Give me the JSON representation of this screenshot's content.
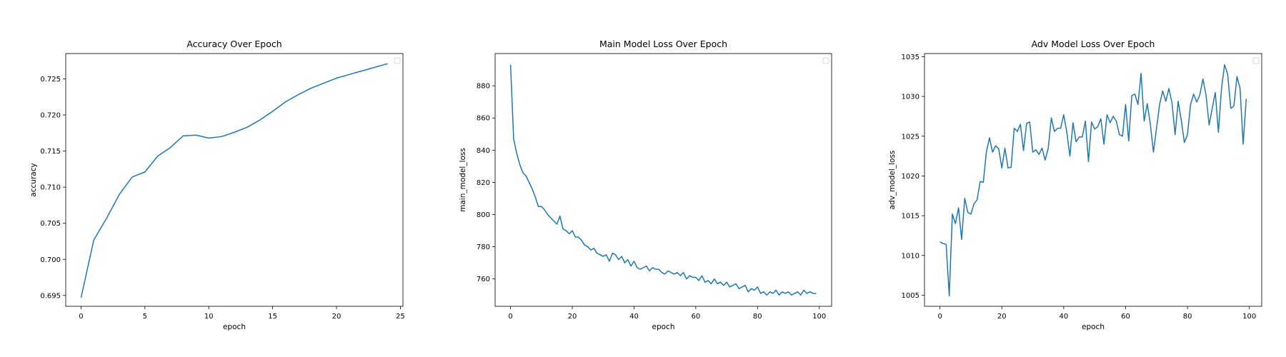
{
  "chart_data": [
    {
      "type": "line",
      "title": "Accuracy Over Epoch",
      "xlabel": "epoch",
      "ylabel": "accuracy",
      "xlim": [
        -1.2,
        25.2
      ],
      "ylim": [
        0.6935,
        0.7285
      ],
      "xticks": [
        0,
        5,
        10,
        15,
        20,
        25
      ],
      "yticks": [
        0.695,
        0.7,
        0.705,
        0.71,
        0.715,
        0.72,
        0.725
      ],
      "ytick_labels": [
        "0.695",
        "0.700",
        "0.705",
        "0.710",
        "0.715",
        "0.720",
        "0.725"
      ],
      "legend": "top-right (empty)",
      "grid": false,
      "color": "#1f77b4",
      "series": [
        {
          "x": [
            0,
            1,
            2,
            3,
            4,
            5,
            6,
            7,
            8,
            9,
            10,
            11,
            12,
            13,
            14,
            15,
            16,
            17,
            18,
            19,
            20,
            21,
            22,
            23,
            24
          ],
          "values": [
            0.6947,
            0.7027,
            0.7057,
            0.709,
            0.7114,
            0.7121,
            0.7143,
            0.7155,
            0.7171,
            0.7172,
            0.7168,
            0.717,
            0.7176,
            0.7183,
            0.7193,
            0.7205,
            0.7218,
            0.7228,
            0.7237,
            0.7244,
            0.7251,
            0.7256,
            0.7261,
            0.7266,
            0.7271
          ]
        }
      ]
    },
    {
      "type": "line",
      "title": "Main Model Loss Over Epoch",
      "xlabel": "epoch",
      "ylabel": "main_model_loss",
      "xlim": [
        -5,
        104
      ],
      "ylim": [
        743,
        900
      ],
      "xticks": [
        0,
        20,
        40,
        60,
        80,
        100
      ],
      "yticks": [
        760,
        780,
        800,
        820,
        840,
        860,
        880
      ],
      "ytick_labels": [
        "760",
        "780",
        "800",
        "820",
        "840",
        "860",
        "880"
      ],
      "legend": "top-right (empty)",
      "grid": false,
      "color": "#1f77b4",
      "series": [
        {
          "x": [
            0,
            1,
            2,
            3,
            4,
            5,
            6,
            7,
            8,
            9,
            10,
            11,
            12,
            13,
            14,
            15,
            16,
            17,
            18,
            19,
            20,
            21,
            22,
            23,
            24,
            25,
            26,
            27,
            28,
            29,
            30,
            31,
            32,
            33,
            34,
            35,
            36,
            37,
            38,
            39,
            40,
            41,
            42,
            43,
            44,
            45,
            46,
            47,
            48,
            49,
            50,
            51,
            52,
            53,
            54,
            55,
            56,
            57,
            58,
            59,
            60,
            61,
            62,
            63,
            64,
            65,
            66,
            67,
            68,
            69,
            70,
            71,
            72,
            73,
            74,
            75,
            76,
            77,
            78,
            79,
            80,
            81,
            82,
            83,
            84,
            85,
            86,
            87,
            88,
            89,
            90,
            91,
            92,
            93,
            94,
            95,
            96,
            97,
            98,
            99
          ],
          "values": [
            893,
            847,
            838,
            831,
            826,
            824,
            820,
            816,
            811,
            805,
            805,
            803,
            800,
            798,
            796,
            794,
            799,
            791,
            790,
            788,
            790,
            786,
            786,
            784,
            781,
            780,
            778,
            779,
            776,
            775,
            774,
            775,
            771,
            776,
            775,
            772,
            774,
            770,
            772,
            768,
            771,
            767,
            766,
            767,
            768,
            765,
            767,
            766,
            766,
            764,
            763,
            765,
            764,
            763,
            764,
            762,
            764,
            760,
            762,
            761,
            761,
            759,
            762,
            758,
            759,
            757,
            760,
            757,
            758,
            756,
            758,
            755,
            756,
            757,
            754,
            755,
            756,
            752,
            754,
            753,
            755,
            751,
            752,
            750,
            752,
            751,
            753,
            750,
            752,
            751,
            752,
            750,
            751,
            752,
            750,
            753,
            751,
            752,
            751,
            751
          ]
        }
      ]
    },
    {
      "type": "line",
      "title": "Adv Model Loss Over Epoch",
      "xlabel": "epoch",
      "ylabel": "adv_model_loss",
      "xlim": [
        -5,
        104
      ],
      "ylim": [
        1003.6,
        1035.4
      ],
      "xticks": [
        0,
        20,
        40,
        60,
        80,
        100
      ],
      "yticks": [
        1005,
        1010,
        1015,
        1020,
        1025,
        1030,
        1035
      ],
      "ytick_labels": [
        "1005",
        "1010",
        "1015",
        "1020",
        "1025",
        "1030",
        "1035"
      ],
      "legend": "top-right (empty)",
      "grid": false,
      "color": "#1f77b4",
      "series": [
        {
          "x": [
            0,
            1,
            2,
            3,
            4,
            5,
            6,
            7,
            8,
            9,
            10,
            11,
            12,
            13,
            14,
            15,
            16,
            17,
            18,
            19,
            20,
            21,
            22,
            23,
            24,
            25,
            26,
            27,
            28,
            29,
            30,
            31,
            32,
            33,
            34,
            35,
            36,
            37,
            38,
            39,
            40,
            41,
            42,
            43,
            44,
            45,
            46,
            47,
            48,
            49,
            50,
            51,
            52,
            53,
            54,
            55,
            56,
            57,
            58,
            59,
            60,
            61,
            62,
            63,
            64,
            65,
            66,
            67,
            68,
            69,
            70,
            71,
            72,
            73,
            74,
            75,
            76,
            77,
            78,
            79,
            80,
            81,
            82,
            83,
            84,
            85,
            86,
            87,
            88,
            89,
            90,
            91,
            92,
            93,
            94,
            95,
            96,
            97,
            98,
            99
          ],
          "values": [
            1011.7,
            1011.5,
            1011.4,
            1004.9,
            1015.2,
            1014.0,
            1016.0,
            1012.0,
            1017.2,
            1015.4,
            1015.2,
            1016.5,
            1017.0,
            1019.3,
            1019.2,
            1023.0,
            1024.8,
            1023.0,
            1023.8,
            1023.4,
            1021.0,
            1023.5,
            1021.0,
            1021.1,
            1026.0,
            1025.6,
            1026.5,
            1023.2,
            1026.6,
            1026.8,
            1023.0,
            1023.3,
            1022.7,
            1023.5,
            1022.0,
            1023.5,
            1027.3,
            1025.6,
            1026.0,
            1026.0,
            1027.7,
            1025.5,
            1022.5,
            1026.7,
            1024.3,
            1024.9,
            1024.9,
            1026.9,
            1021.8,
            1026.8,
            1025.9,
            1026.2,
            1027.2,
            1024.0,
            1027.7,
            1026.7,
            1027.5,
            1026.9,
            1025.2,
            1025.0,
            1029.0,
            1024.4,
            1030.1,
            1030.3,
            1029.0,
            1032.9,
            1026.9,
            1029.1,
            1026.5,
            1023.0,
            1026.0,
            1029.0,
            1030.7,
            1029.4,
            1031.0,
            1029.2,
            1025.2,
            1029.4,
            1027.0,
            1024.2,
            1025.2,
            1029.0,
            1030.3,
            1029.3,
            1030.2,
            1032.2,
            1030.2,
            1026.4,
            1028.5,
            1030.5,
            1025.5,
            1031.0,
            1034.0,
            1032.8,
            1028.5,
            1028.8,
            1032.5,
            1031.0,
            1024.0,
            1029.7
          ]
        }
      ]
    }
  ]
}
